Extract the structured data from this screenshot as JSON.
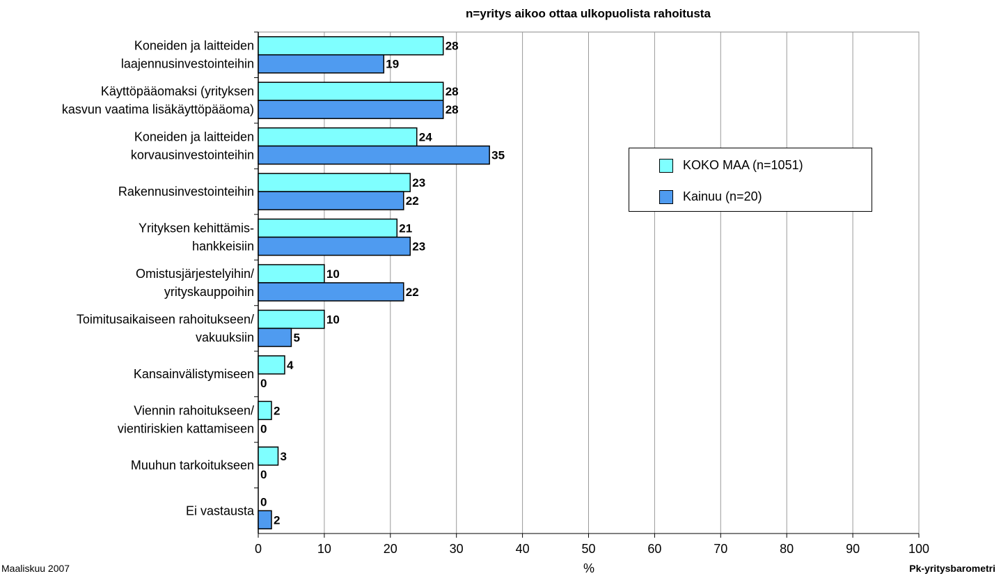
{
  "subtitle": "n=yritys aikoo ottaa ulkopuolista rahoitusta",
  "footer": {
    "left": "Maaliskuu 2007",
    "right": "Pk-yritysbarometri"
  },
  "colors": {
    "koko_maa": "#7FFFFF",
    "kainuu": "#4F9BF0",
    "grid": "#999999",
    "axis": "#000000"
  },
  "chart_data": {
    "type": "bar",
    "orientation": "horizontal",
    "categories": [
      [
        "Koneiden ja laitteiden",
        "laajennusinvestointeihin"
      ],
      [
        "Käyttöpääomaksi (yrityksen",
        "kasvun vaatima lisäkäyttöpääoma)"
      ],
      [
        "Koneiden ja laitteiden",
        "korvausinvestointeihin"
      ],
      [
        "Rakennusinvestointeihin"
      ],
      [
        "Yrityksen kehittämis-",
        "hankkeisiin"
      ],
      [
        "Omistusjärjestelyihin/",
        "yrityskauppoihin"
      ],
      [
        "Toimitusaikaiseen rahoitukseen/",
        "vakuuksiin"
      ],
      [
        "Kansainvälistymiseen"
      ],
      [
        "Viennin rahoitukseen/",
        "vientiriskien kattamiseen"
      ],
      [
        "Muuhun tarkoitukseen"
      ],
      [
        "Ei vastausta"
      ]
    ],
    "series": [
      {
        "name": "KOKO MAA (n=1051)",
        "values": [
          28,
          28,
          24,
          23,
          21,
          10,
          10,
          4,
          2,
          3,
          0
        ]
      },
      {
        "name": "Kainuu (n=20)",
        "values": [
          19,
          28,
          35,
          22,
          23,
          22,
          5,
          0,
          0,
          0,
          2
        ]
      }
    ],
    "xlabel": "%",
    "xlim": [
      0,
      100
    ],
    "xticks": [
      0,
      10,
      20,
      30,
      40,
      50,
      60,
      70,
      80,
      90,
      100
    ],
    "grid": true,
    "legend_position": "right"
  }
}
